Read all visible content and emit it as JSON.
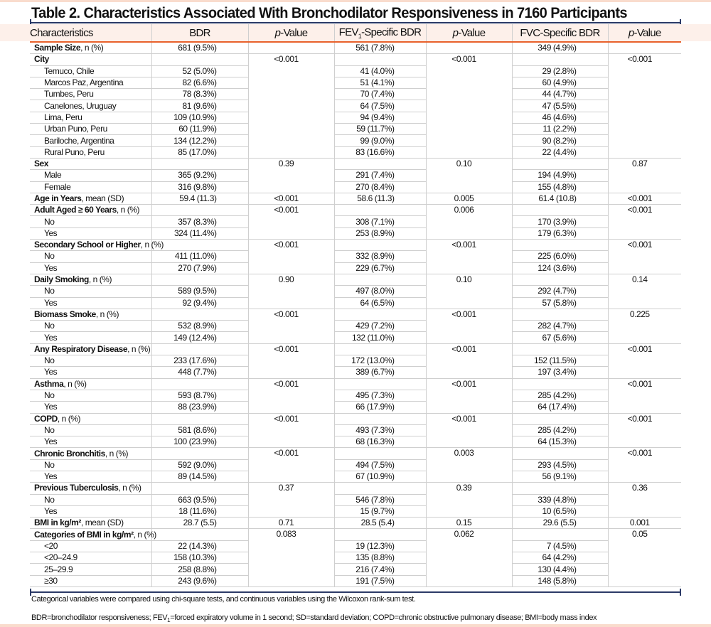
{
  "title": "Table 2. Characteristics Associated With Bronchodilator Responsiveness in 7160 Participants",
  "colors": {
    "rule": "#2b3a67",
    "header_underline": "#e8612c",
    "band": "#fdf0ea"
  },
  "headers": [
    "Characteristics",
    "BDR",
    "p-Value",
    "FEV1-Specific BDR",
    "p-Value",
    "FVC-Specific BDR",
    "p-Value"
  ],
  "groups": [
    {
      "label": "Sample Size",
      "suffix": ", n (%)",
      "bdr": "681 (9.5%)",
      "p1": "",
      "fev": "561 (7.8%)",
      "p2": "",
      "fvc": "349 (4.9%)",
      "p3": "",
      "rows": []
    },
    {
      "label": "City",
      "suffix": "",
      "bdr": "",
      "p1": "<0.001",
      "fev": "",
      "p2": "<0.001",
      "fvc": "",
      "p3": "<0.001",
      "rows": [
        {
          "label": "Temuco, Chile",
          "bdr": "52 (5.0%)",
          "fev": "41 (4.0%)",
          "fvc": "29 (2.8%)"
        },
        {
          "label": "Marcos Paz, Argentina",
          "bdr": "82 (6.6%)",
          "fev": "51 (4.1%)",
          "fvc": "60 (4.9%)"
        },
        {
          "label": "Tumbes, Peru",
          "bdr": "78 (8.3%)",
          "fev": "70 (7.4%)",
          "fvc": "44 (4.7%)"
        },
        {
          "label": "Canelones, Uruguay",
          "bdr": "81 (9.6%)",
          "fev": "64 (7.5%)",
          "fvc": "47 (5.5%)"
        },
        {
          "label": "Lima, Peru",
          "bdr": "109 (10.9%)",
          "fev": "94 (9.4%)",
          "fvc": "46 (4.6%)"
        },
        {
          "label": "Urban Puno, Peru",
          "bdr": "60 (11.9%)",
          "fev": "59 (11.7%)",
          "fvc": "11 (2.2%)"
        },
        {
          "label": "Bariloche, Argentina",
          "bdr": "134 (12.2%)",
          "fev": "99 (9.0%)",
          "fvc": "90 (8.2%)"
        },
        {
          "label": "Rural Puno, Peru",
          "bdr": "85 (17.0%)",
          "fev": "83 (16.6%)",
          "fvc": "22 (4.4%)"
        }
      ]
    },
    {
      "label": "Sex",
      "suffix": "",
      "bdr": "",
      "p1": "0.39",
      "fev": "",
      "p2": "0.10",
      "fvc": "",
      "p3": "0.87",
      "rows": [
        {
          "label": "Male",
          "bdr": "365 (9.2%)",
          "fev": "291 (7.4%)",
          "fvc": "194 (4.9%)"
        },
        {
          "label": "Female",
          "bdr": "316 (9.8%)",
          "fev": "270 (8.4%)",
          "fvc": "155 (4.8%)"
        }
      ]
    },
    {
      "label": "Age in Years",
      "suffix": ", mean (SD)",
      "bdr": "59.4 (11.3)",
      "p1": "<0.001",
      "fev": "58.6 (11.3)",
      "p2": "0.005",
      "fvc": "61.4 (10.8)",
      "p3": "<0.001",
      "rows": []
    },
    {
      "label": "Adult Aged ≥ 60 Years",
      "suffix": ", n (%)",
      "bdr": "",
      "p1": "<0.001",
      "fev": "",
      "p2": "0.006",
      "fvc": "",
      "p3": "<0.001",
      "rows": [
        {
          "label": "No",
          "bdr": "357 (8.3%)",
          "fev": "308 (7.1%)",
          "fvc": "170 (3.9%)"
        },
        {
          "label": "Yes",
          "bdr": "324 (11.4%)",
          "fev": "253 (8.9%)",
          "fvc": "179 (6.3%)"
        }
      ]
    },
    {
      "label": "Secondary School or Higher",
      "suffix": ", n (%)",
      "bdr": "",
      "p1": "<0.001",
      "fev": "",
      "p2": "<0.001",
      "fvc": "",
      "p3": "<0.001",
      "rows": [
        {
          "label": "No",
          "bdr": "411 (11.0%)",
          "fev": "332 (8.9%)",
          "fvc": "225 (6.0%)"
        },
        {
          "label": "Yes",
          "bdr": "270 (7.9%)",
          "fev": "229 (6.7%)",
          "fvc": "124 (3.6%)"
        }
      ]
    },
    {
      "label": "Daily Smoking",
      "suffix": ", n (%)",
      "bdr": "",
      "p1": "0.90",
      "fev": "",
      "p2": "0.10",
      "fvc": "",
      "p3": "0.14",
      "rows": [
        {
          "label": "No",
          "bdr": "589 (9.5%)",
          "fev": "497 (8.0%)",
          "fvc": "292 (4.7%)"
        },
        {
          "label": "Yes",
          "bdr": "92 (9.4%)",
          "fev": "64 (6.5%)",
          "fvc": "57 (5.8%)"
        }
      ]
    },
    {
      "label": "Biomass Smoke",
      "suffix": ", n (%)",
      "bdr": "",
      "p1": "<0.001",
      "fev": "",
      "p2": "<0.001",
      "fvc": "",
      "p3": "0.225",
      "rows": [
        {
          "label": "No",
          "bdr": "532 (8.9%)",
          "fev": "429 (7.2%)",
          "fvc": "282 (4.7%)"
        },
        {
          "label": "Yes",
          "bdr": "149 (12.4%)",
          "fev": "132 (11.0%)",
          "fvc": "67 (5.6%)"
        }
      ]
    },
    {
      "label": "Any Respiratory Disease",
      "suffix": ", n (%)",
      "bdr": "",
      "p1": "<0.001",
      "fev": "",
      "p2": "<0.001",
      "fvc": "",
      "p3": "<0.001",
      "rows": [
        {
          "label": "No",
          "bdr": "233 (17.6%)",
          "fev": "172 (13.0%)",
          "fvc": "152 (11.5%)"
        },
        {
          "label": "Yes",
          "bdr": "448 (7.7%)",
          "fev": "389 (6.7%)",
          "fvc": "197 (3.4%)"
        }
      ]
    },
    {
      "label": "Asthma",
      "suffix": ", n (%)",
      "bdr": "",
      "p1": "<0.001",
      "fev": "",
      "p2": "<0.001",
      "fvc": "",
      "p3": "<0.001",
      "rows": [
        {
          "label": "No",
          "bdr": "593 (8.7%)",
          "fev": "495 (7.3%)",
          "fvc": "285 (4.2%)"
        },
        {
          "label": "Yes",
          "bdr": "88 (23.9%)",
          "fev": "66 (17.9%)",
          "fvc": "64 (17.4%)"
        }
      ]
    },
    {
      "label": "COPD",
      "suffix": ", n (%)",
      "bdr": "",
      "p1": "<0.001",
      "fev": "",
      "p2": "<0.001",
      "fvc": "",
      "p3": "<0.001",
      "rows": [
        {
          "label": "No",
          "bdr": "581 (8.6%)",
          "fev": "493 (7.3%)",
          "fvc": "285 (4.2%)"
        },
        {
          "label": "Yes",
          "bdr": "100 (23.9%)",
          "fev": "68 (16.3%)",
          "fvc": "64 (15.3%)"
        }
      ]
    },
    {
      "label": "Chronic Bronchitis",
      "suffix": ", n (%)",
      "bdr": "",
      "p1": "<0.001",
      "fev": "",
      "p2": "0.003",
      "fvc": "",
      "p3": "<0.001",
      "rows": [
        {
          "label": "No",
          "bdr": "592 (9.0%)",
          "fev": "494 (7.5%)",
          "fvc": "293 (4.5%)"
        },
        {
          "label": "Yes",
          "bdr": "89 (14.5%)",
          "fev": "67 (10.9%)",
          "fvc": "56 (9.1%)"
        }
      ]
    },
    {
      "label": "Previous Tuberculosis",
      "suffix": ", n (%)",
      "bdr": "",
      "p1": "0.37",
      "fev": "",
      "p2": "0.39",
      "fvc": "",
      "p3": "0.36",
      "rows": [
        {
          "label": "No",
          "bdr": "663 (9.5%)",
          "fev": "546 (7.8%)",
          "fvc": "339 (4.8%)"
        },
        {
          "label": "Yes",
          "bdr": "18 (11.6%)",
          "fev": "15 (9.7%)",
          "fvc": "10 (6.5%)"
        }
      ]
    },
    {
      "label": "BMI in kg/m²",
      "suffix": ", mean (SD)",
      "bdr": "28.7 (5.5)",
      "p1": "0.71",
      "fev": "28.5 (5.4)",
      "p2": "0.15",
      "fvc": "29.6 (5.5)",
      "p3": "0.001",
      "rows": []
    },
    {
      "label": "Categories of BMI in kg/m²",
      "suffix": ", n (%)",
      "bdr": "",
      "p1": "0.083",
      "fev": "",
      "p2": "0.062",
      "fvc": "",
      "p3": "0.05",
      "rows": [
        {
          "label": "<20",
          "bdr": "22 (14.3%)",
          "fev": "19 (12.3%)",
          "fvc": "7 (4.5%)"
        },
        {
          "label": "<20–24.9",
          "bdr": "158 (10.3%)",
          "fev": "135 (8.8%)",
          "fvc": "64 (4.2%)"
        },
        {
          "label": "25–29.9",
          "bdr": "258 (8.8%)",
          "fev": "216 (7.4%)",
          "fvc": "130 (4.4%)"
        },
        {
          "label": "≥30",
          "bdr": "243 (9.6%)",
          "fev": "191 (7.5%)",
          "fvc": "148 (5.8%)"
        }
      ]
    }
  ],
  "notes": [
    "Categorical variables were compared using chi-square tests, and continuous variables using the Wilcoxon rank-sum test.",
    "BDR=bronchodilator responsiveness; FEV1=forced expiratory volume in 1 second; SD=standard deviation; COPD=chronic obstructive pulmonary disease; BMI=body mass index"
  ]
}
